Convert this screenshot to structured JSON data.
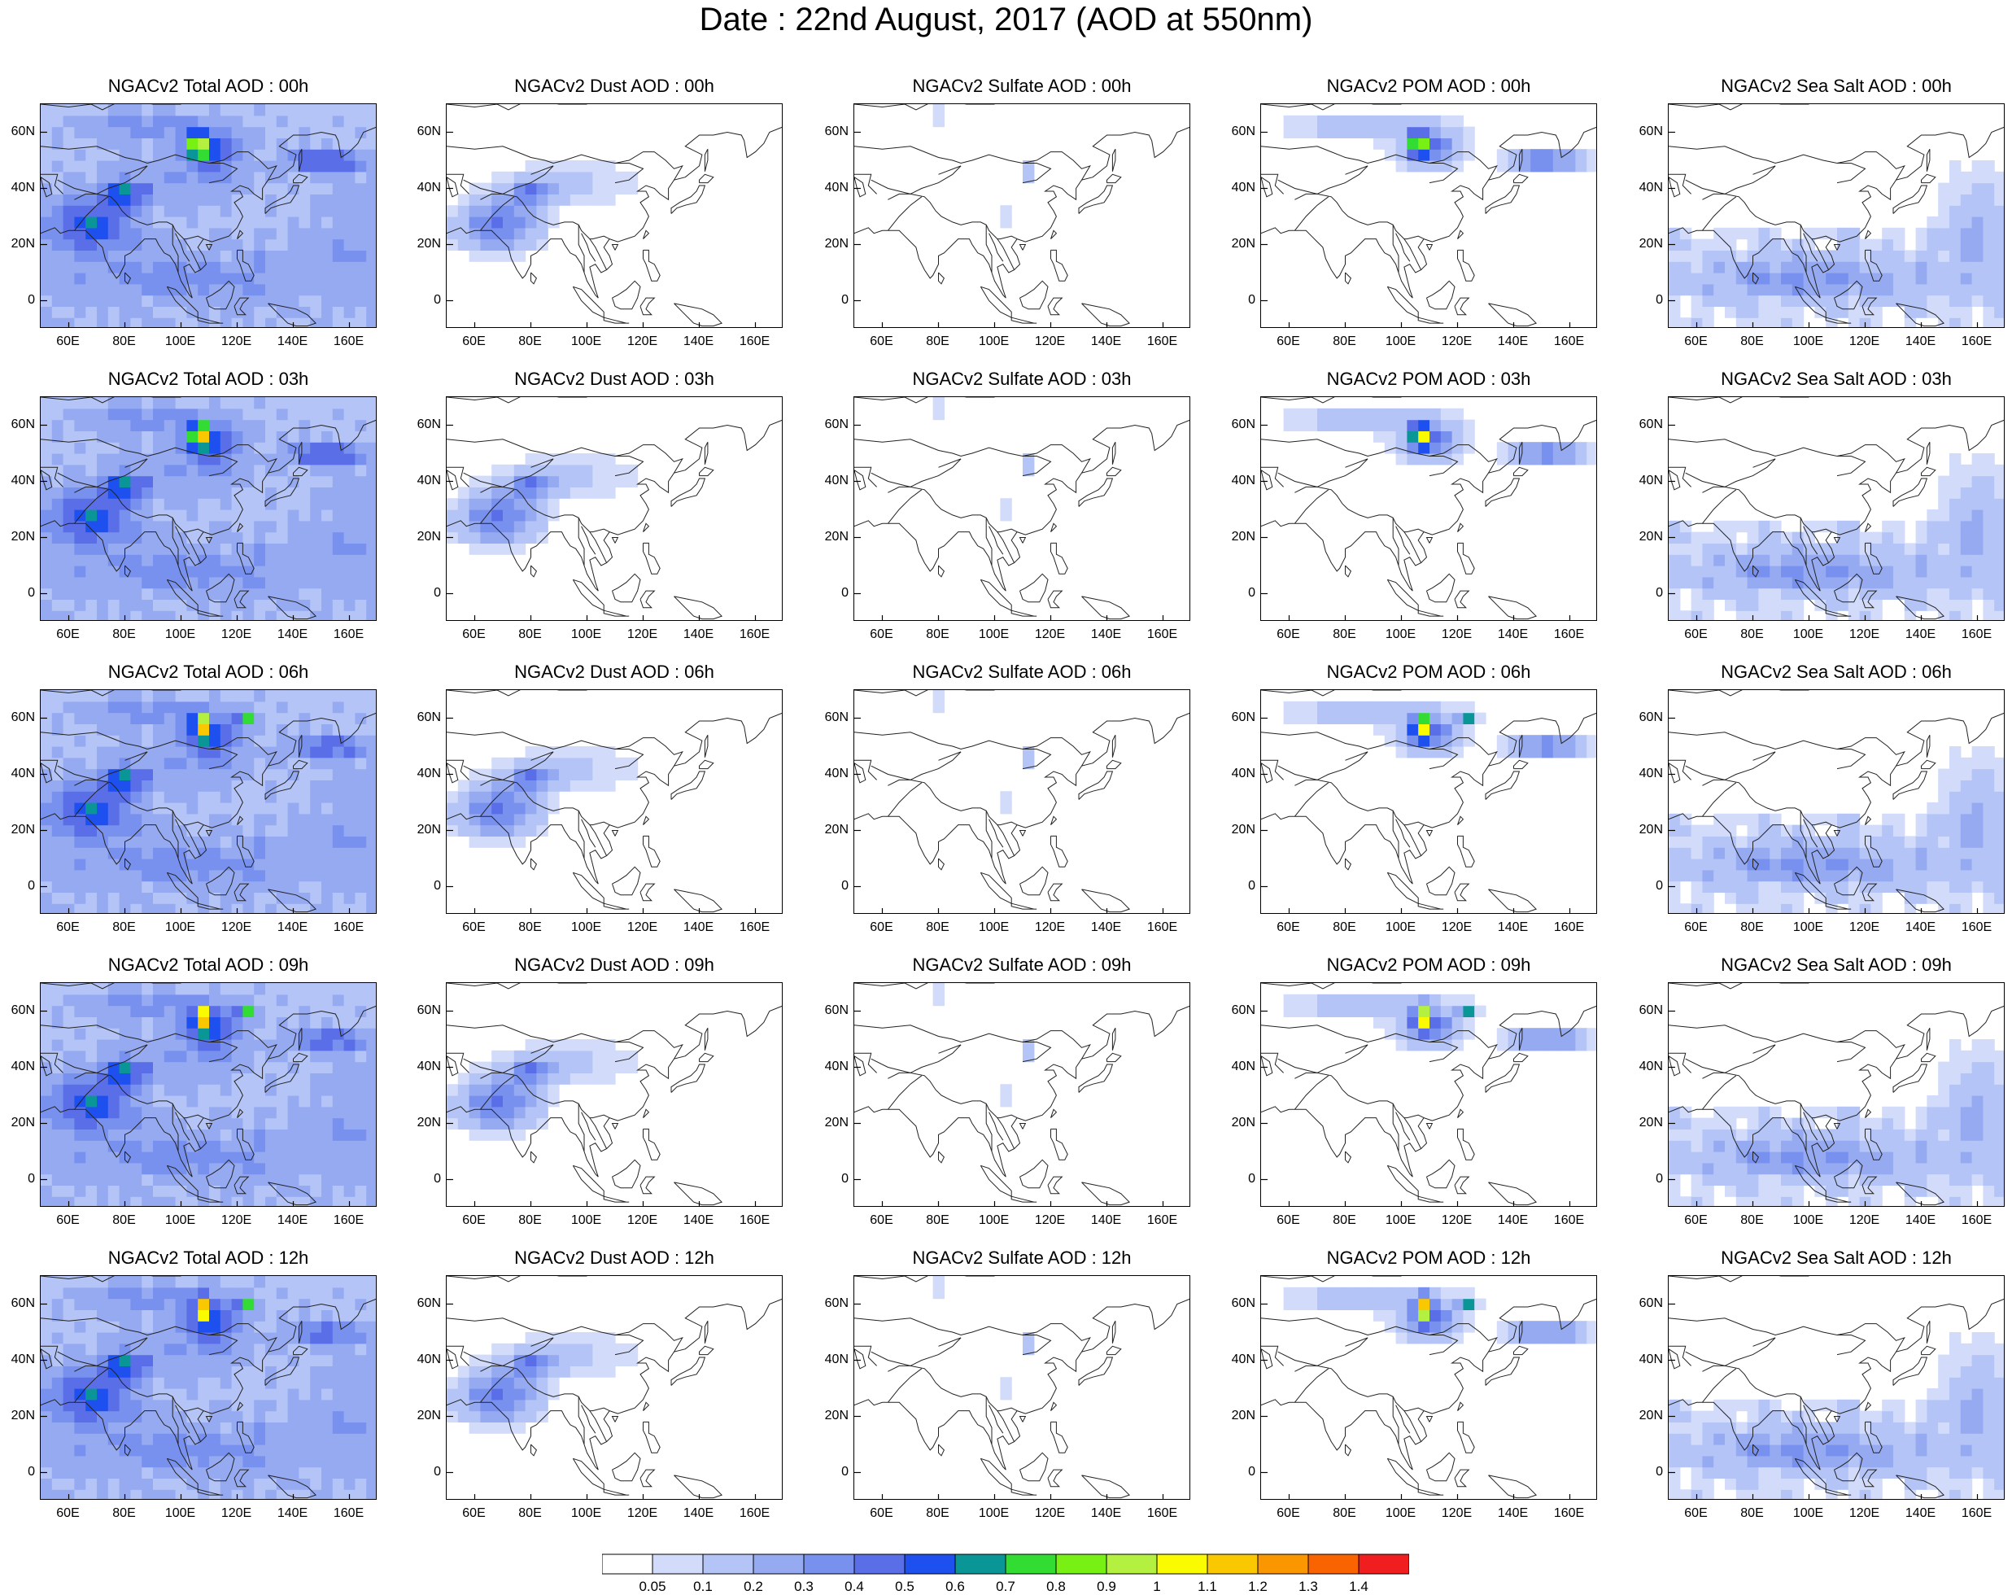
{
  "title": "Date : 22nd August, 2017 (AOD at 550nm)",
  "panels": [
    {
      "title": "NGACv2 Total AOD : 00h",
      "kind": "total",
      "hour": 0
    },
    {
      "title": "NGACv2 Dust AOD : 00h",
      "kind": "dust",
      "hour": 0
    },
    {
      "title": "NGACv2 Sulfate AOD : 00h",
      "kind": "sulfate",
      "hour": 0
    },
    {
      "title": "NGACv2 POM AOD : 00h",
      "kind": "pom",
      "hour": 0
    },
    {
      "title": "NGACv2 Sea Salt AOD : 00h",
      "kind": "seasalt",
      "hour": 0
    },
    {
      "title": "NGACv2 Total AOD : 03h",
      "kind": "total",
      "hour": 3
    },
    {
      "title": "NGACv2 Dust AOD : 03h",
      "kind": "dust",
      "hour": 3
    },
    {
      "title": "NGACv2 Sulfate AOD : 03h",
      "kind": "sulfate",
      "hour": 3
    },
    {
      "title": "NGACv2 POM AOD : 03h",
      "kind": "pom",
      "hour": 3
    },
    {
      "title": "NGACv2 Sea Salt AOD : 03h",
      "kind": "seasalt",
      "hour": 3
    },
    {
      "title": "NGACv2 Total AOD : 06h",
      "kind": "total",
      "hour": 6
    },
    {
      "title": "NGACv2 Dust AOD : 06h",
      "kind": "dust",
      "hour": 6
    },
    {
      "title": "NGACv2 Sulfate AOD : 06h",
      "kind": "sulfate",
      "hour": 6
    },
    {
      "title": "NGACv2 POM AOD : 06h",
      "kind": "pom",
      "hour": 6
    },
    {
      "title": "NGACv2 Sea Salt AOD : 06h",
      "kind": "seasalt",
      "hour": 6
    },
    {
      "title": "NGACv2 Total AOD : 09h",
      "kind": "total",
      "hour": 9
    },
    {
      "title": "NGACv2 Dust AOD : 09h",
      "kind": "dust",
      "hour": 9
    },
    {
      "title": "NGACv2 Sulfate AOD : 09h",
      "kind": "sulfate",
      "hour": 9
    },
    {
      "title": "NGACv2 POM AOD : 09h",
      "kind": "pom",
      "hour": 9
    },
    {
      "title": "NGACv2 Sea Salt  AOD : 09h",
      "kind": "seasalt",
      "hour": 9
    },
    {
      "title": "NGACv2 Total AOD  : 12h",
      "kind": "total",
      "hour": 12
    },
    {
      "title": "NGACv2 Dust AOD : 12h",
      "kind": "dust",
      "hour": 12
    },
    {
      "title": "NGACv2 Sulfate AOD : 12h",
      "kind": "sulfate",
      "hour": 12
    },
    {
      "title": "NGACv2 POM  AOD : 12h",
      "kind": "pom",
      "hour": 12
    },
    {
      "title": "NGACv2 Sea Salt  AOD : 12h",
      "kind": "seasalt",
      "hour": 12
    }
  ],
  "lat_ticks": [
    "60N",
    "40N",
    "20N",
    "0"
  ],
  "lat_values": [
    60,
    40,
    20,
    0
  ],
  "lon_ticks": [
    "60E",
    "80E",
    "100E",
    "120E",
    "140E",
    "160E"
  ],
  "lon_values": [
    60,
    80,
    100,
    120,
    140,
    160
  ],
  "lon_range": [
    50,
    170
  ],
  "lat_range": [
    -10,
    70
  ],
  "colorbar": {
    "labels": [
      "0.05",
      "0.1",
      "0.2",
      "0.3",
      "0.4",
      "0.5",
      "0.6",
      "0.7",
      "0.8",
      "0.9",
      "1",
      "1.1",
      "1.2",
      "1.3",
      "1.4"
    ],
    "colors": [
      "#ffffff",
      "#d2dcfa",
      "#b4c4f6",
      "#96aaf2",
      "#7890ee",
      "#5a6ee8",
      "#1e50f0",
      "#0a9696",
      "#32dc32",
      "#78f014",
      "#b4f040",
      "#fafa00",
      "#fac800",
      "#fa9600",
      "#fa6400",
      "#f01e1e"
    ]
  }
}
